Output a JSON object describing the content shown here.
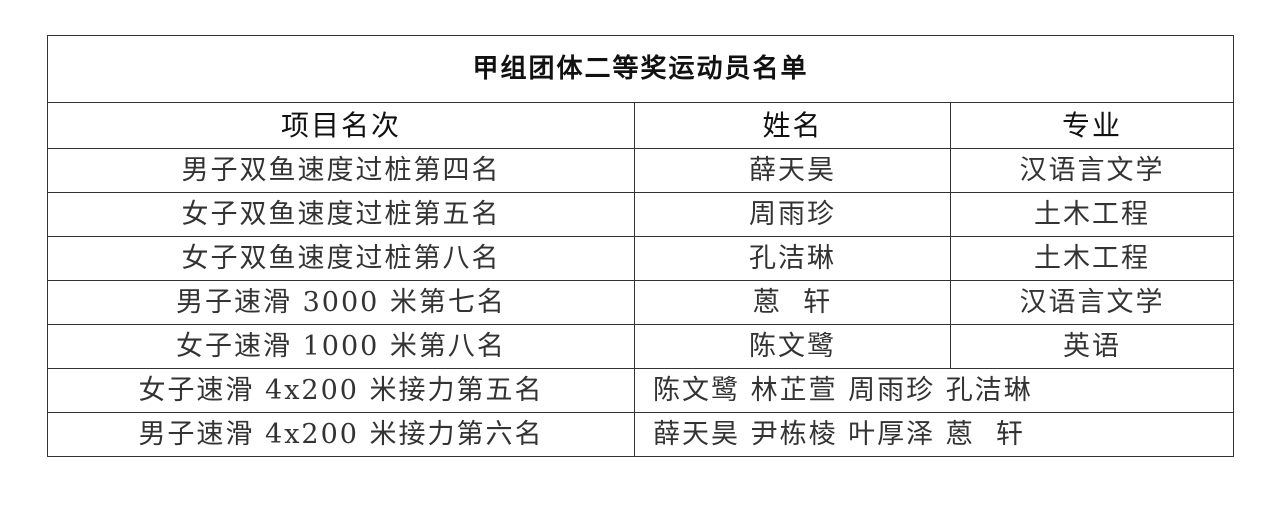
{
  "title": "甲组团体二等奖运动员名单",
  "headers": [
    "项目名次",
    "姓名",
    "专业"
  ],
  "rows": [
    {
      "event": "男子双鱼速度过桩第四名",
      "name": "薛天昊",
      "major": "汉语言文学"
    },
    {
      "event": "女子双鱼速度过桩第五名",
      "name": "周雨珍",
      "major": "土木工程"
    },
    {
      "event": "女子双鱼速度过桩第八名",
      "name": "孔洁琳",
      "major": "土木工程"
    },
    {
      "event": "男子速滑 3000 米第七名",
      "name": "蒽  轩",
      "major": "汉语言文学"
    },
    {
      "event": "女子速滑 1000 米第八名",
      "name": "陈文鹭",
      "major": "英语"
    }
  ],
  "relay_rows": [
    {
      "event": "女子速滑 4x200 米接力第五名",
      "names": "陈文鹭 林芷萱 周雨珍 孔洁琳"
    },
    {
      "event": "男子速滑 4x200 米接力第六名",
      "names": "薛天昊 尹栋棱 叶厚泽 蒽  轩"
    }
  ]
}
